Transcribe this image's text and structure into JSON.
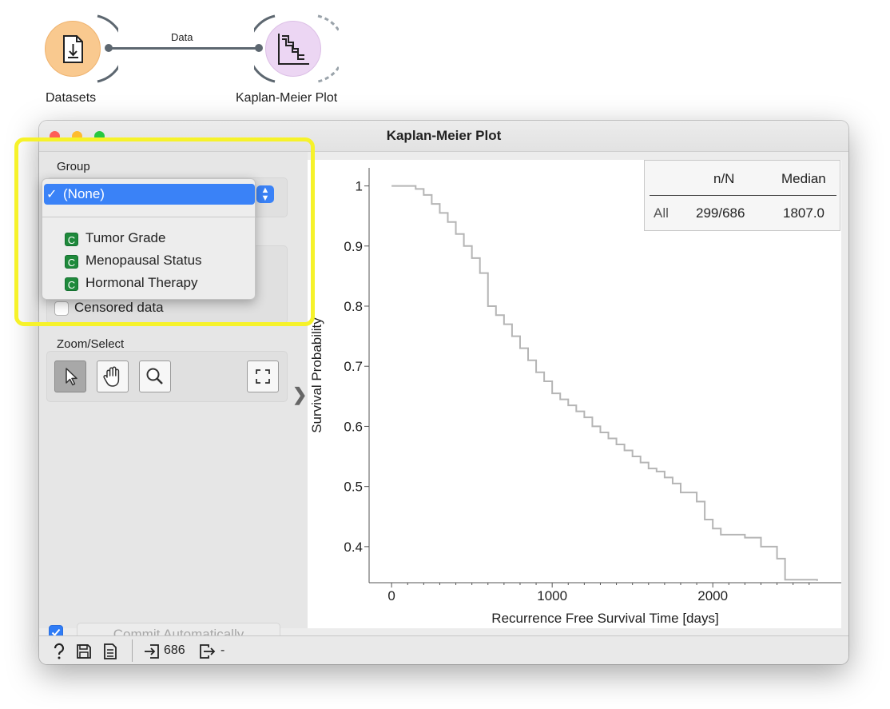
{
  "canvas": {
    "node_datasets": {
      "label": "Datasets",
      "icon": "file-download-icon",
      "color": "#f9c98f"
    },
    "node_km": {
      "label": "Kaplan-Meier Plot",
      "icon": "step-curve-icon",
      "color": "#ecd6f3"
    },
    "link_label": "Data"
  },
  "window": {
    "title": "Kaplan-Meier Plot",
    "traffic": {
      "close": "#fe5f57",
      "minimize": "#febc2e",
      "zoom": "#28c840"
    }
  },
  "sidebar": {
    "group_label": "Group",
    "group_selected": "(None)",
    "group_options": [
      "Tumor Grade",
      "Menopausal Status",
      "Hormonal Therapy"
    ],
    "option_badge": "C",
    "censored_label": "Censored data",
    "zoom_label": "Zoom/Select",
    "zoom_tools": [
      "pointer-icon",
      "hand-pan-icon",
      "magnifier-zoom-icon",
      "fit-expand-icon"
    ],
    "commit_label": "Commit Automatically",
    "commit_checked": true
  },
  "stats_table": {
    "headers": [
      "",
      "n/N",
      "Median"
    ],
    "rows": [
      {
        "group": "All",
        "nN": "299/686",
        "median": "1807.0"
      }
    ]
  },
  "statusbar": {
    "input_count": "686",
    "output_count": "-",
    "icons": [
      "help-icon",
      "save-icon",
      "report-icon",
      "input-icon",
      "output-icon"
    ]
  },
  "chart_data": {
    "type": "line",
    "xlabel": "Recurrence Free Survival Time [days]",
    "ylabel": "Survival Probability",
    "xlim": [
      -140,
      2800
    ],
    "ylim": [
      0.34,
      1.03
    ],
    "xticks": [
      0,
      1000,
      2000
    ],
    "yticks": [
      0.4,
      0.5,
      0.6,
      0.7,
      0.8,
      0.9,
      1
    ],
    "series": [
      {
        "color": "#b5b5b5",
        "points": [
          [
            0,
            1.0
          ],
          [
            100,
            1.0
          ],
          [
            150,
            0.995
          ],
          [
            200,
            0.985
          ],
          [
            250,
            0.97
          ],
          [
            300,
            0.955
          ],
          [
            350,
            0.94
          ],
          [
            400,
            0.92
          ],
          [
            450,
            0.9
          ],
          [
            500,
            0.88
          ],
          [
            550,
            0.855
          ],
          [
            600,
            0.8
          ],
          [
            650,
            0.785
          ],
          [
            700,
            0.77
          ],
          [
            750,
            0.75
          ],
          [
            800,
            0.73
          ],
          [
            850,
            0.71
          ],
          [
            900,
            0.69
          ],
          [
            950,
            0.675
          ],
          [
            1000,
            0.655
          ],
          [
            1050,
            0.645
          ],
          [
            1100,
            0.635
          ],
          [
            1150,
            0.625
          ],
          [
            1200,
            0.615
          ],
          [
            1250,
            0.6
          ],
          [
            1300,
            0.59
          ],
          [
            1350,
            0.58
          ],
          [
            1400,
            0.57
          ],
          [
            1450,
            0.56
          ],
          [
            1500,
            0.55
          ],
          [
            1550,
            0.54
          ],
          [
            1600,
            0.53
          ],
          [
            1650,
            0.525
          ],
          [
            1700,
            0.515
          ],
          [
            1750,
            0.505
          ],
          [
            1800,
            0.49
          ],
          [
            1850,
            0.49
          ],
          [
            1900,
            0.475
          ],
          [
            1950,
            0.445
          ],
          [
            2000,
            0.43
          ],
          [
            2050,
            0.42
          ],
          [
            2100,
            0.42
          ],
          [
            2200,
            0.415
          ],
          [
            2300,
            0.4
          ],
          [
            2350,
            0.4
          ],
          [
            2400,
            0.38
          ],
          [
            2450,
            0.345
          ],
          [
            2500,
            0.345
          ],
          [
            2650,
            0.343
          ]
        ]
      }
    ]
  }
}
